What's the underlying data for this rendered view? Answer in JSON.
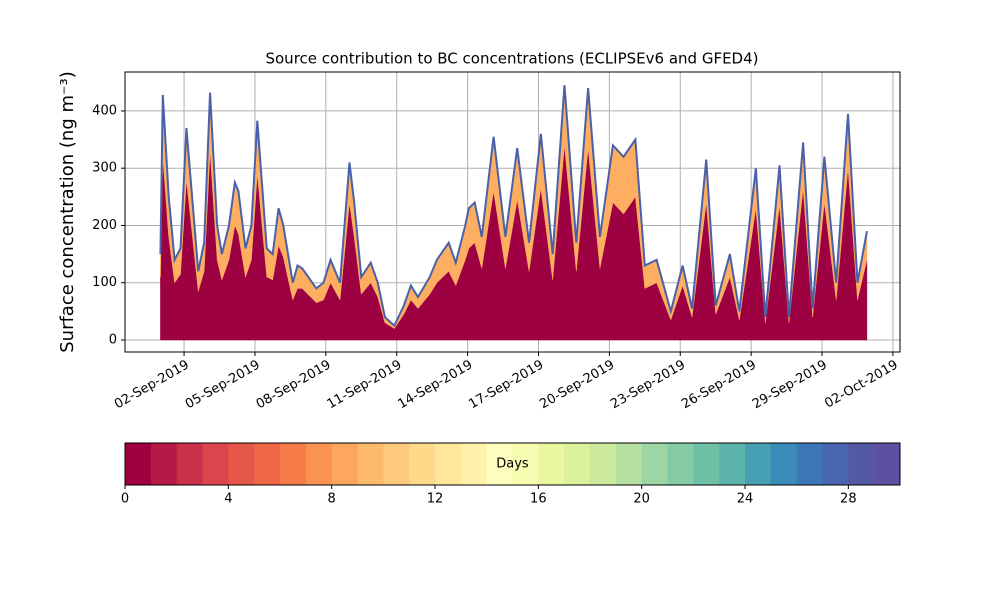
{
  "chart_data": {
    "type": "stackedarea",
    "title": "Source contribution to BC concentrations (ECLIPSEv6 and GFED4)",
    "ylabel": "Surface concentration (ng m⁻³)",
    "x": [
      1.0,
      1.1,
      1.35,
      1.6,
      1.85,
      2.1,
      2.6,
      2.85,
      3.1,
      3.4,
      3.6,
      3.9,
      4.15,
      4.3,
      4.6,
      4.85,
      5.1,
      5.5,
      5.75,
      6.0,
      6.2,
      6.6,
      6.8,
      7.0,
      7.6,
      7.9,
      8.2,
      8.6,
      9.0,
      9.2,
      9.5,
      9.9,
      10.2,
      10.5,
      10.9,
      11.3,
      11.6,
      11.9,
      12.4,
      12.7,
      13.2,
      13.5,
      13.9,
      14.05,
      14.3,
      14.6,
      15.1,
      15.6,
      16.1,
      16.6,
      17.1,
      17.6,
      18.1,
      18.6,
      19.1,
      19.6,
      20.15,
      20.6,
      21.1,
      21.5,
      22.0,
      22.6,
      23.1,
      23.5,
      24.1,
      24.5,
      25.1,
      25.5,
      26.2,
      26.6,
      27.2,
      27.6,
      28.2,
      28.6,
      29.1,
      29.6,
      30.1,
      30.5,
      30.9
    ],
    "series": [
      {
        "color": "#9e0142",
        "values": [
          110,
          320,
          180,
          100,
          115,
          280,
          85,
          120,
          330,
          140,
          105,
          140,
          200,
          185,
          110,
          140,
          290,
          110,
          105,
          165,
          145,
          70,
          90,
          90,
          65,
          70,
          100,
          70,
          240,
          180,
          80,
          100,
          75,
          30,
          20,
          45,
          70,
          55,
          80,
          100,
          120,
          95,
          140,
          160,
          170,
          125,
          260,
          125,
          245,
          120,
          265,
          105,
          340,
          120,
          335,
          125,
          240,
          220,
          250,
          90,
          100,
          35,
          95,
          40,
          240,
          45,
          110,
          35,
          230,
          30,
          235,
          30,
          265,
          40,
          240,
          70,
          300,
          70,
          140
        ]
      },
      {
        "color": "#fdae61",
        "values": [
          40,
          108,
          70,
          40,
          45,
          90,
          35,
          50,
          102,
          60,
          45,
          60,
          75,
          75,
          50,
          60,
          93,
          50,
          45,
          65,
          55,
          30,
          40,
          35,
          25,
          30,
          40,
          30,
          70,
          60,
          30,
          35,
          25,
          10,
          5,
          15,
          25,
          20,
          30,
          40,
          50,
          40,
          60,
          70,
          70,
          55,
          95,
          55,
          90,
          50,
          95,
          45,
          105,
          50,
          105,
          55,
          100,
          100,
          100,
          40,
          40,
          15,
          35,
          15,
          75,
          15,
          40,
          15,
          70,
          10,
          70,
          10,
          80,
          15,
          80,
          30,
          95,
          30,
          50
        ]
      }
    ],
    "outline_color": "#4a60a8",
    "xlim": [
      -0.5,
      32.3
    ],
    "xticks": [
      {
        "value": 2,
        "label": "02-Sep-2019"
      },
      {
        "value": 5,
        "label": "05-Sep-2019"
      },
      {
        "value": 8,
        "label": "08-Sep-2019"
      },
      {
        "value": 11,
        "label": "11-Sep-2019"
      },
      {
        "value": 14,
        "label": "14-Sep-2019"
      },
      {
        "value": 17,
        "label": "17-Sep-2019"
      },
      {
        "value": 20,
        "label": "20-Sep-2019"
      },
      {
        "value": 23,
        "label": "23-Sep-2019"
      },
      {
        "value": 26,
        "label": "26-Sep-2019"
      },
      {
        "value": 29,
        "label": "29-Sep-2019"
      },
      {
        "value": 32,
        "label": "02-Oct-2019"
      }
    ],
    "ylim": [
      -21,
      468
    ],
    "yticks": [
      0,
      100,
      200,
      300,
      400
    ],
    "grid": true,
    "colorbar": {
      "label": "Days",
      "lim": [
        0,
        30
      ],
      "ticks": [
        0,
        4,
        8,
        12,
        16,
        20,
        24,
        28
      ],
      "colors": [
        "#9e0142",
        "#b41947",
        "#c9314b",
        "#da464c",
        "#e55749",
        "#ef6645",
        "#f67c4a",
        "#f99253",
        "#fca65e",
        "#fdba6b",
        "#fec97b",
        "#fed98a",
        "#fee79a",
        "#fff3ab",
        "#fffebe",
        "#f6fbb2",
        "#eaf79f",
        "#dbf19c",
        "#cbe99d",
        "#b5e0a2",
        "#9dd5a4",
        "#84cba5",
        "#6dc0a5",
        "#5ab2ab",
        "#479fb3",
        "#3a8bb9",
        "#3c78b5",
        "#4965ad",
        "#5459a6",
        "#5e4fa2"
      ]
    }
  }
}
